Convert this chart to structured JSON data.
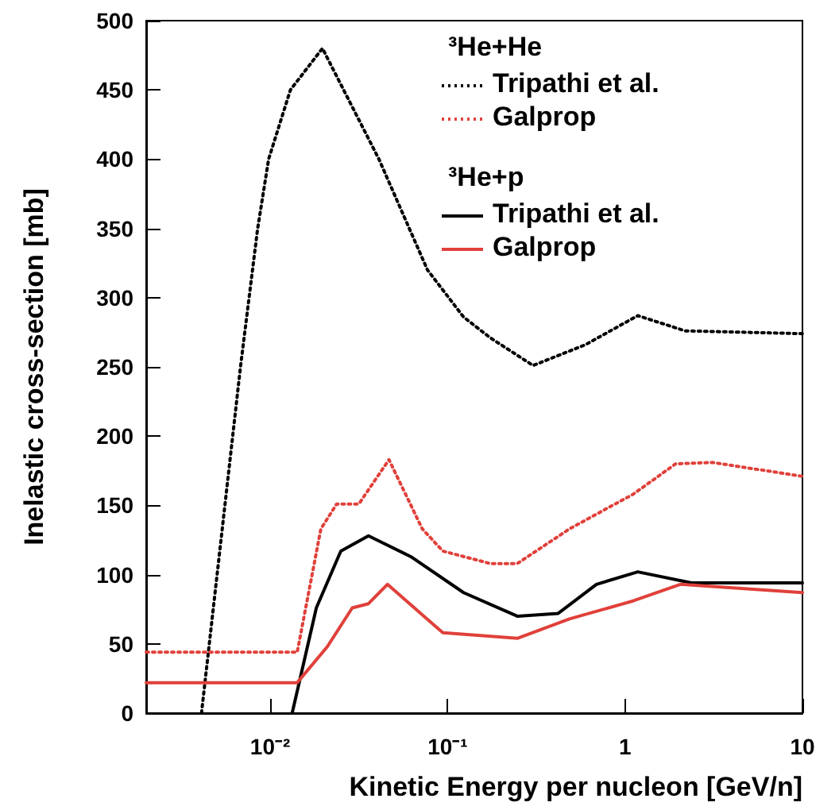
{
  "chart_data": {
    "type": "line",
    "xlabel": "Kinetic Energy per nucleon [GeV/n]",
    "ylabel": "Inelastic cross-section [mb]",
    "log": "x",
    "xlim": [
      0.002,
      10
    ],
    "xticks": [
      {
        "value": 0.01,
        "label": "10⁻²"
      },
      {
        "value": 0.1,
        "label": "10⁻¹"
      },
      1,
      10
    ],
    "ylim": [
      0,
      500
    ],
    "yticks": [
      0,
      50,
      100,
      150,
      200,
      250,
      300,
      350,
      400,
      450,
      500
    ],
    "grid": false,
    "legend": "top right",
    "marker": "none",
    "annotations": [
      "³He+He",
      "³He+p"
    ],
    "series": [
      {
        "name": "Tripathi et al.",
        "color": "#000000",
        "line_style": "dotted",
        "x": [
          0.0041,
          0.0068,
          0.0085,
          0.0098,
          0.013,
          0.0197,
          0.041,
          0.077,
          0.123,
          0.174,
          0.303,
          0.598,
          1.18,
          2.18,
          10
        ],
        "values": [
          0,
          250,
          350,
          400,
          450,
          480,
          400,
          320,
          286,
          271,
          251,
          266,
          287,
          276,
          274
        ]
      },
      {
        "name": "Galprop",
        "color": "#e0403a",
        "line_style": "dotted",
        "x": [
          0.002,
          0.0142,
          0.0193,
          0.0237,
          0.0316,
          0.0467,
          0.072,
          0.094,
          0.174,
          0.247,
          0.486,
          0.85,
          1.11,
          1.93,
          3.1,
          10
        ],
        "values": [
          44,
          44,
          133,
          151,
          151,
          183,
          133,
          117,
          108,
          108,
          133,
          150,
          158,
          180,
          181,
          171
        ]
      },
      {
        "name": "Tripathi et al.",
        "color": "#000000",
        "line_style": "solid",
        "x": [
          0.0133,
          0.0182,
          0.025,
          0.0358,
          0.062,
          0.123,
          0.247,
          0.42,
          0.69,
          1.18,
          2.37,
          10
        ],
        "values": [
          0,
          76,
          117,
          128,
          113,
          87,
          70,
          72,
          93,
          102,
          94,
          94
        ]
      },
      {
        "name": "Galprop",
        "color": "#e0403a",
        "line_style": "solid",
        "x": [
          0.002,
          0.0142,
          0.021,
          0.029,
          0.0358,
          0.0458,
          0.072,
          0.094,
          0.247,
          0.486,
          1.11,
          2.05,
          10
        ],
        "values": [
          22,
          22,
          48,
          76,
          79,
          93,
          71,
          58,
          54,
          68,
          81,
          93,
          87
        ]
      }
    ]
  }
}
